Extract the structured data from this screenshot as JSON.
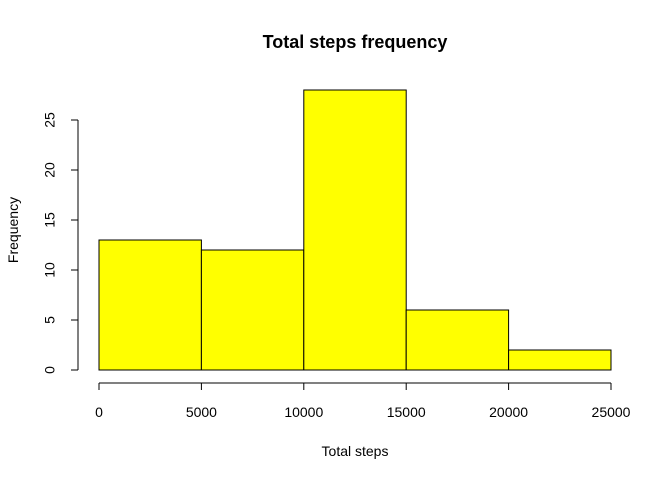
{
  "chart_data": {
    "type": "bar",
    "title": "Total steps frequency",
    "xlabel": "Total steps",
    "ylabel": "Frequency",
    "bins": [
      {
        "start": 0,
        "end": 5000,
        "count": 13
      },
      {
        "start": 5000,
        "end": 10000,
        "count": 12
      },
      {
        "start": 10000,
        "end": 15000,
        "count": 28
      },
      {
        "start": 15000,
        "end": 20000,
        "count": 6
      },
      {
        "start": 20000,
        "end": 25000,
        "count": 2
      }
    ],
    "x_ticks": [
      0,
      5000,
      10000,
      15000,
      20000,
      25000
    ],
    "y_ticks": [
      0,
      5,
      10,
      15,
      20,
      25
    ],
    "xlim": [
      0,
      25000
    ],
    "ylim": [
      0,
      28
    ],
    "bar_color": "#ffff00",
    "grid": false,
    "legend": "none"
  }
}
